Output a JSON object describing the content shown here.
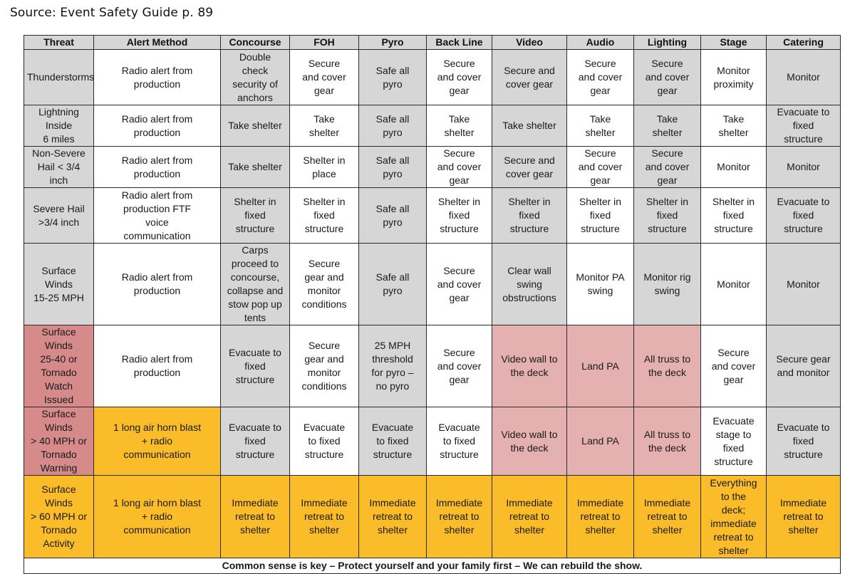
{
  "source_caption": "Source: Event Safety Guide p. 89",
  "columns": [
    "Threat",
    "Alert Method",
    "Concourse",
    "FOH",
    "Pyro",
    "Back Line",
    "Video",
    "Audio",
    "Lighting",
    "Stage",
    "Catering"
  ],
  "colors": {
    "gray": "#d6d6d6",
    "white": "#ffffff",
    "threat_red": "#d68a8a",
    "light_red": "#e4b0b0",
    "orange": "#fbbc2a"
  },
  "rows": [
    {
      "threat": "Thunderstorms",
      "cells": [
        "Radio alert from\nproduction",
        "Double\ncheck\nsecurity of\nanchors",
        "Secure\nand cover\ngear",
        "Safe all\npyro",
        "Secure\nand cover\ngear",
        "Secure and\ncover gear",
        "Secure\nand cover\ngear",
        "Secure\nand cover\ngear",
        "Monitor\nproximity",
        "Monitor"
      ]
    },
    {
      "threat": "Lightning Inside\n6 miles",
      "cells": [
        "Radio alert from\nproduction",
        "Take shelter",
        "Take\nshelter",
        "Safe all\npyro",
        "Take\nshelter",
        "Take shelter",
        "Take\nshelter",
        "Take\nshelter",
        "Take\nshelter",
        "Evacuate to\nfixed\nstructure"
      ]
    },
    {
      "threat": "Non-Severe\nHail < 3/4 inch",
      "cells": [
        "Radio alert from\nproduction",
        "Take shelter",
        "Shelter in\nplace",
        "Safe all\npyro",
        "Secure\nand cover\ngear",
        "Secure and\ncover gear",
        "Secure\nand cover\ngear",
        "Secure\nand cover\ngear",
        "Monitor",
        "Monitor"
      ]
    },
    {
      "threat": "Severe Hail\n>3/4 inch",
      "cells": [
        "Radio alert from\nproduction FTF\nvoice\ncommunication",
        "Shelter in\nfixed\nstructure",
        "Shelter in\nfixed\nstructure",
        "Safe all\npyro",
        "Shelter in\nfixed\nstructure",
        "Shelter in\nfixed\nstructure",
        "Shelter in\nfixed\nstructure",
        "Shelter in\nfixed\nstructure",
        "Shelter in\nfixed\nstructure",
        "Evacuate to\nfixed\nstructure"
      ]
    },
    {
      "threat": "Surface Winds\n15-25 MPH",
      "cells": [
        "Radio alert from\nproduction",
        "Carps\nproceed to\nconcourse,\ncollapse and\nstow pop up\ntents",
        "Secure\ngear and\nmonitor\nconditions",
        "Safe all\npyro",
        "Secure\nand cover\ngear",
        "Clear wall\nswing\nobstructions",
        "Monitor PA\nswing",
        "Monitor rig\nswing",
        "Monitor",
        "Monitor"
      ]
    },
    {
      "threat": "Surface Winds\n25-40 or\nTornado Watch\nIssued",
      "cells": [
        "Radio alert from\nproduction",
        "Evacuate to\nfixed\nstructure",
        "Secure\ngear and\nmonitor\nconditions",
        "25 MPH\nthreshold\nfor pyro –\nno pyro",
        "Secure\nand cover\ngear",
        "Video wall to\nthe deck",
        "Land PA",
        "All truss to\nthe deck",
        "Secure\nand cover\ngear",
        "Secure gear\nand monitor"
      ]
    },
    {
      "threat": "Surface Winds\n> 40 MPH or\nTornado\nWarning",
      "cells": [
        "1 long air horn blast\n+ radio\ncommunication",
        "Evacuate to\nfixed\nstructure",
        "Evacuate\nto fixed\nstructure",
        "Evacuate\nto fixed\nstructure",
        "Evacuate\nto fixed\nstructure",
        "Video wall to\nthe deck",
        "Land PA",
        "All truss to\nthe deck",
        "Evacuate\nstage to\nfixed\nstructure",
        "Evacuate to\nfixed\nstructure"
      ]
    },
    {
      "threat": "Surface Winds\n> 60 MPH or\nTornado Activity",
      "cells": [
        "1 long air horn blast\n+ radio\ncommunication",
        "Immediate\nretreat to\nshelter",
        "Immediate\nretreat to\nshelter",
        "Immediate\nretreat to\nshelter",
        "Immediate\nretreat to\nshelter",
        "Immediate\nretreat to\nshelter",
        "Immediate\nretreat to\nshelter",
        "Immediate\nretreat to\nshelter",
        "Everything\nto the\ndeck;\nimmediate\nretreat to\nshelter",
        "Immediate\nretreat to\nshelter"
      ]
    }
  ],
  "footer": "Common sense is key – Protect yourself and your family first – We can rebuild the show."
}
